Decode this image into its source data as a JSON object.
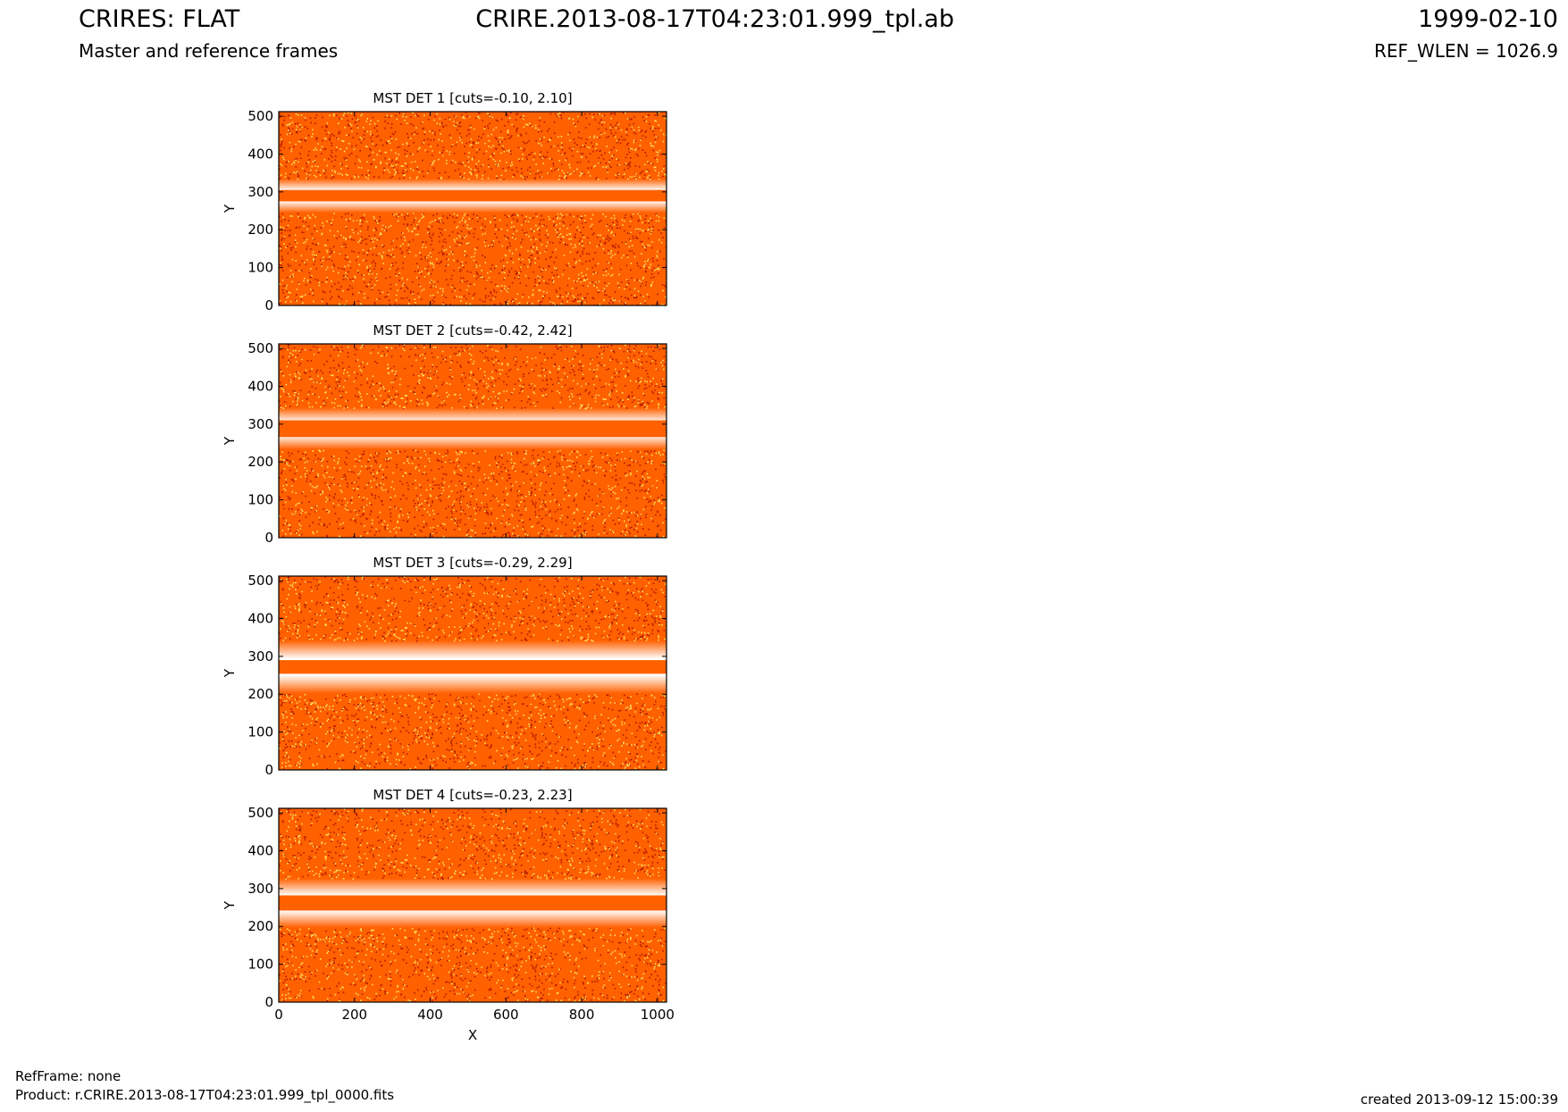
{
  "header": {
    "title": "CRIRES: FLAT",
    "subtitle": "Master and reference frames",
    "filename": "CRIRE.2013-08-17T04:23:01.999_tpl.ab",
    "date": "1999-02-10",
    "ref_wlen": "REF_WLEN = 1026.9"
  },
  "footer": {
    "ref_frame": "RefFrame: none",
    "product": "Product: r.CRIRE.2013-08-17T04:23:01.999_tpl_0000.fits",
    "created": "created 2013-09-12 15:00:39"
  },
  "colors": {
    "background_orange": "#ff6000",
    "dark_speckle": "#b01800",
    "light_speckle": "#ffe060",
    "white": "#ffffff"
  },
  "chart_data": [
    {
      "type": "heatmap",
      "title": "MST DET 1 [cuts=-0.10, 2.10]",
      "ylabel": "Y",
      "xlabel": "",
      "xlim": [
        0,
        1024
      ],
      "ylim": [
        0,
        512
      ],
      "xticks": [],
      "yticks": [
        0,
        100,
        200,
        300,
        400,
        500
      ],
      "band_center_y": 290,
      "band_halfwidth": 15,
      "halo_halfwidth": 45,
      "colormap": "hot"
    },
    {
      "type": "heatmap",
      "title": "MST DET 2 [cuts=-0.42, 2.42]",
      "ylabel": "Y",
      "xlabel": "",
      "xlim": [
        0,
        1024
      ],
      "ylim": [
        0,
        512
      ],
      "xticks": [],
      "yticks": [
        0,
        100,
        200,
        300,
        400,
        500
      ],
      "band_center_y": 288,
      "band_halfwidth": 22,
      "halo_halfwidth": 55,
      "colormap": "hot"
    },
    {
      "type": "heatmap",
      "title": "MST DET 3 [cuts=-0.29, 2.29]",
      "ylabel": "Y",
      "xlabel": "",
      "xlim": [
        0,
        1024
      ],
      "ylim": [
        0,
        512
      ],
      "xticks": [],
      "yticks": [
        0,
        100,
        200,
        300,
        400,
        500
      ],
      "band_center_y": 272,
      "band_halfwidth": 18,
      "halo_halfwidth": 70,
      "colormap": "hot"
    },
    {
      "type": "heatmap",
      "title": "MST DET 4 [cuts=-0.23, 2.23]",
      "ylabel": "Y",
      "xlabel": "X",
      "xlim": [
        0,
        1024
      ],
      "ylim": [
        0,
        512
      ],
      "xticks": [
        0,
        200,
        400,
        600,
        800,
        1000
      ],
      "yticks": [
        0,
        100,
        200,
        300,
        400,
        500
      ],
      "band_center_y": 262,
      "band_halfwidth": 20,
      "halo_halfwidth": 65,
      "colormap": "hot"
    }
  ]
}
